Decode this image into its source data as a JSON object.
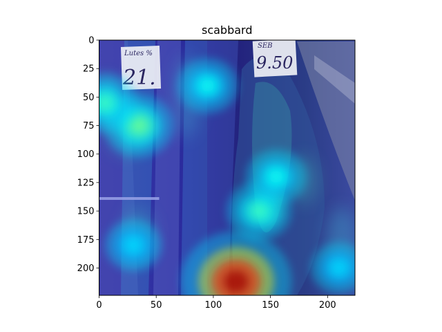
{
  "chart_data": {
    "type": "heatmap",
    "title": "scabbard",
    "xlabel": "",
    "ylabel": "",
    "xlim": [
      0,
      224
    ],
    "ylim": [
      224,
      0
    ],
    "x_ticks": [
      0,
      50,
      100,
      150,
      200
    ],
    "y_ticks": [
      0,
      25,
      50,
      75,
      100,
      125,
      150,
      175,
      200
    ],
    "grid": false,
    "image_description": "photo of scabbard fish at a market stall with price tags, overlaid with a jet-colormap class activation heatmap",
    "price_tags": [
      {
        "main": "21.",
        "sub": "Lutes %"
      },
      {
        "main": "9.50",
        "sub": "SEB"
      }
    ],
    "colormap": "jet",
    "activation_hotspots": [
      {
        "x": 120,
        "y": 212,
        "intensity": 1.0
      },
      {
        "x": 140,
        "y": 150,
        "intensity": 0.45
      },
      {
        "x": 35,
        "y": 75,
        "intensity": 0.5
      },
      {
        "x": 5,
        "y": 55,
        "intensity": 0.45
      },
      {
        "x": 95,
        "y": 40,
        "intensity": 0.4
      },
      {
        "x": 155,
        "y": 120,
        "intensity": 0.4
      },
      {
        "x": 30,
        "y": 180,
        "intensity": 0.35
      },
      {
        "x": 210,
        "y": 200,
        "intensity": 0.35
      }
    ]
  }
}
